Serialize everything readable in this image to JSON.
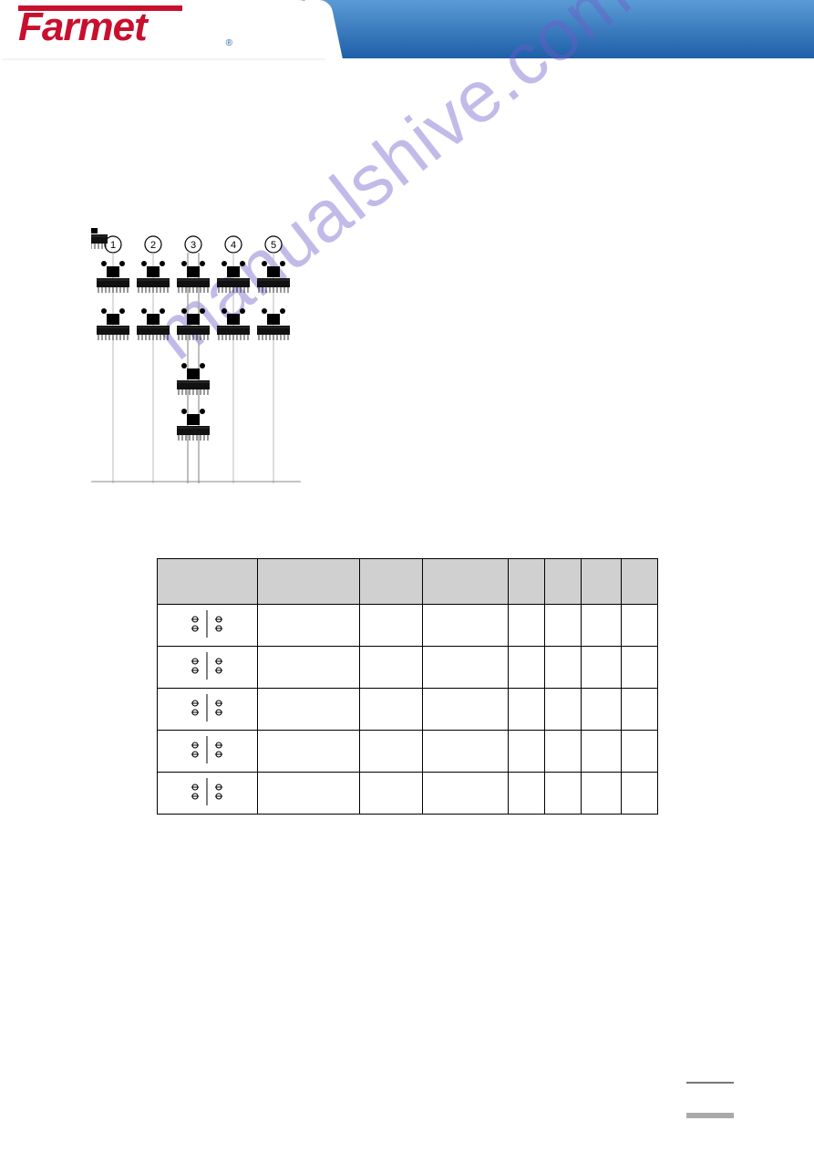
{
  "brand": {
    "name": "Farmet"
  },
  "watermark": {
    "text": "manualshive.com",
    "color": "#6e5ac8"
  },
  "diagram": {
    "labels": [
      "1",
      "2",
      "3",
      "4",
      "5"
    ],
    "circle_stroke": "#000000",
    "circle_fill": "#ffffff",
    "line_color": "#888888"
  },
  "table": {
    "header_bg": "#d0d0d0",
    "border_color": "#000000",
    "columns": [
      "",
      "",
      "",
      "",
      "",
      "",
      "",
      ""
    ],
    "rows": [
      {
        "icon": true,
        "cells": [
          "",
          "",
          "",
          "",
          "",
          "",
          ""
        ]
      },
      {
        "icon": true,
        "cells": [
          "",
          "",
          "",
          "",
          "",
          "",
          ""
        ]
      },
      {
        "icon": true,
        "cells": [
          "",
          "",
          "",
          "",
          "",
          "",
          ""
        ]
      },
      {
        "icon": true,
        "cells": [
          "",
          "",
          "",
          "",
          "",
          "",
          ""
        ]
      },
      {
        "icon": true,
        "cells": [
          "",
          "",
          "",
          "",
          "",
          "",
          ""
        ]
      }
    ]
  }
}
